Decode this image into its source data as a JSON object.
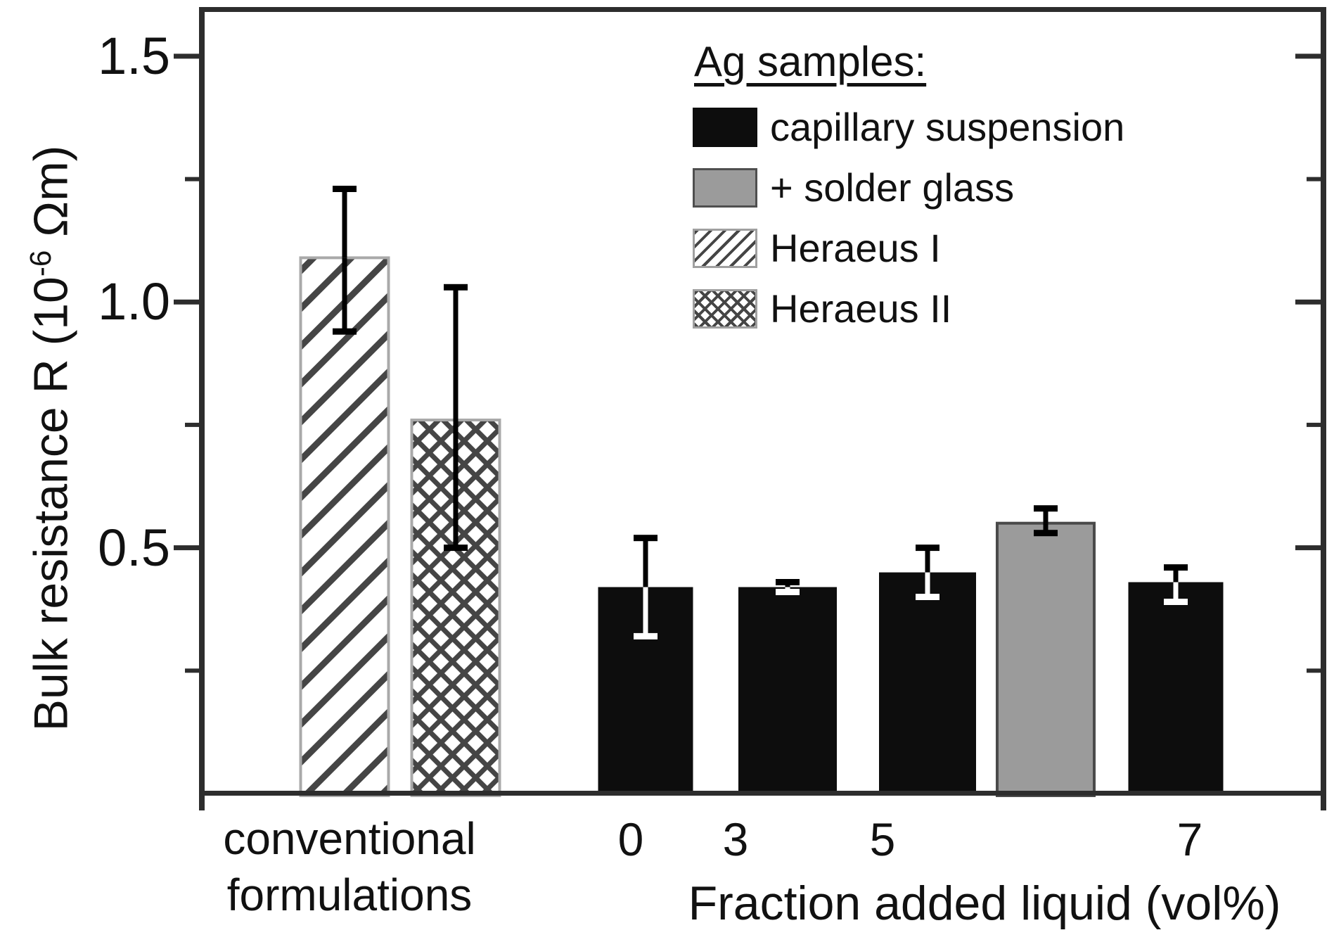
{
  "chart_data": {
    "type": "bar",
    "title": "",
    "ylabel": "Bulk resistance R (10⁻⁶ Ωm)",
    "ylabel_parts": {
      "pre": "Bulk resistance R (10",
      "sup": "-6",
      "post": " Ωm)"
    },
    "xlabel": "Fraction added liquid (vol%)",
    "ylim": [
      0,
      1.6
    ],
    "grid": false,
    "yticks_major": [
      {
        "value": 1.5,
        "label": "1.5"
      },
      {
        "value": 1.0,
        "label": "1.0"
      },
      {
        "value": 0.5,
        "label": "0.5"
      }
    ],
    "yticks_minor": [
      1.25,
      0.75,
      0.25
    ],
    "x_group_label_line1": "conventional",
    "x_group_label_line2": "formulations",
    "x_value_labels": [
      "0",
      "3",
      "5",
      "7"
    ],
    "categories": [
      "conventional formulations",
      "0",
      "3",
      "5",
      "7"
    ],
    "bars": [
      {
        "series": "Heraeus I",
        "category": "conventional formulations",
        "value": 1.09,
        "err_low": 0.94,
        "err_high": 1.23,
        "style": "hatch-diagonal"
      },
      {
        "series": "Heraeus II",
        "category": "conventional formulations",
        "value": 0.76,
        "err_low": 0.5,
        "err_high": 1.03,
        "style": "hatch-cross"
      },
      {
        "series": "capillary suspension",
        "category": "0",
        "value": 0.42,
        "err_low": 0.32,
        "err_high": 0.52,
        "style": "black"
      },
      {
        "series": "capillary suspension",
        "category": "3",
        "value": 0.42,
        "err_low": 0.41,
        "err_high": 0.43,
        "style": "black"
      },
      {
        "series": "capillary suspension",
        "category": "5",
        "value": 0.45,
        "err_low": 0.4,
        "err_high": 0.5,
        "style": "black"
      },
      {
        "series": "capillary suspension + solder glass",
        "category": "5",
        "value": 0.55,
        "err_low": 0.53,
        "err_high": 0.58,
        "style": "gray"
      },
      {
        "series": "capillary suspension",
        "category": "7",
        "value": 0.43,
        "err_low": 0.39,
        "err_high": 0.46,
        "style": "black"
      }
    ],
    "legend": {
      "title": "Ag samples:",
      "position": "top-right-inside",
      "entries": [
        {
          "label": "capillary suspension",
          "style": "black"
        },
        {
          "label": "+ solder glass",
          "style": "gray"
        },
        {
          "label": "Heraeus I",
          "style": "hatch-diagonal"
        },
        {
          "label": "Heraeus II",
          "style": "hatch-cross"
        }
      ]
    }
  },
  "colors": {
    "background": "#ffffff",
    "axis": "#2d2d2d",
    "text": "#111111",
    "bar_black": "#0d0d0d",
    "bar_gray": "#9b9b9b",
    "bar_gray_border": "#4a4a4a",
    "hatch_line": "#454545",
    "hatch_border": "#a9a9a9",
    "error_on_dark": "#ffffff",
    "error_line": "#000000"
  }
}
